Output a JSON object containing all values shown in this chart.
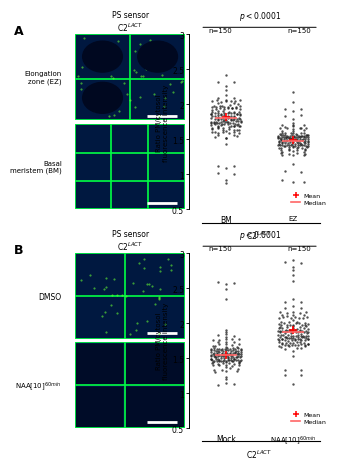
{
  "panel_A": {
    "pvalue": "p<0.0001",
    "n_left": "n=150",
    "n_right": "n=150",
    "group1_label": "BM",
    "group2_label": "EZ",
    "bottom_label": "C2$^{LACT}$",
    "ylabel": "Ratio PM/cytosol\nfluorescence intensity",
    "ylim": [
      0.5,
      3.0
    ],
    "yticks": [
      0.5,
      1.0,
      1.5,
      2.0,
      2.5,
      3.0
    ],
    "ytick_labels": [
      "0.5",
      "1",
      "1.5",
      "2",
      "2.5",
      "3"
    ],
    "group1_mean": 1.82,
    "group1_median": 1.8,
    "group2_mean": 1.49,
    "group2_median": 1.48,
    "img_top_label": "Elongation\nzone (EZ)",
    "img_bot_label": "Basal\nmeristem (BM)"
  },
  "panel_B": {
    "pvalue": "p<0.0001",
    "n_left": "n=150",
    "n_right": "n=150",
    "group1_label": "Mock",
    "group2_label": "NAA[10]$^{60min}$",
    "bottom_label": "C2$^{LACT}$",
    "ylabel": "Ratio PM/cytosol\nfluorescence intensity",
    "ylim": [
      0.5,
      3.0
    ],
    "yticks": [
      0.5,
      1.0,
      1.5,
      2.0,
      2.5,
      3.0
    ],
    "ytick_labels": [
      "0.5",
      "1",
      "1.5",
      "2",
      "2.5",
      "3"
    ],
    "group1_mean": 1.55,
    "group1_median": 1.55,
    "group2_mean": 1.9,
    "group2_median": 1.88,
    "img_top_label": "DMSO",
    "img_bot_label": "NAA[10]$^{60min}$"
  },
  "ps_sensor_title": "PS sensor\nC2$^{LACT}$",
  "dot_color": "#1a1a1a",
  "mean_color": "#ff0000",
  "median_color": "#ff6666",
  "dot_size": 3.0,
  "dot_alpha": 0.75,
  "image_bg_color": "#001840",
  "cell_line_color": "#00ff44"
}
